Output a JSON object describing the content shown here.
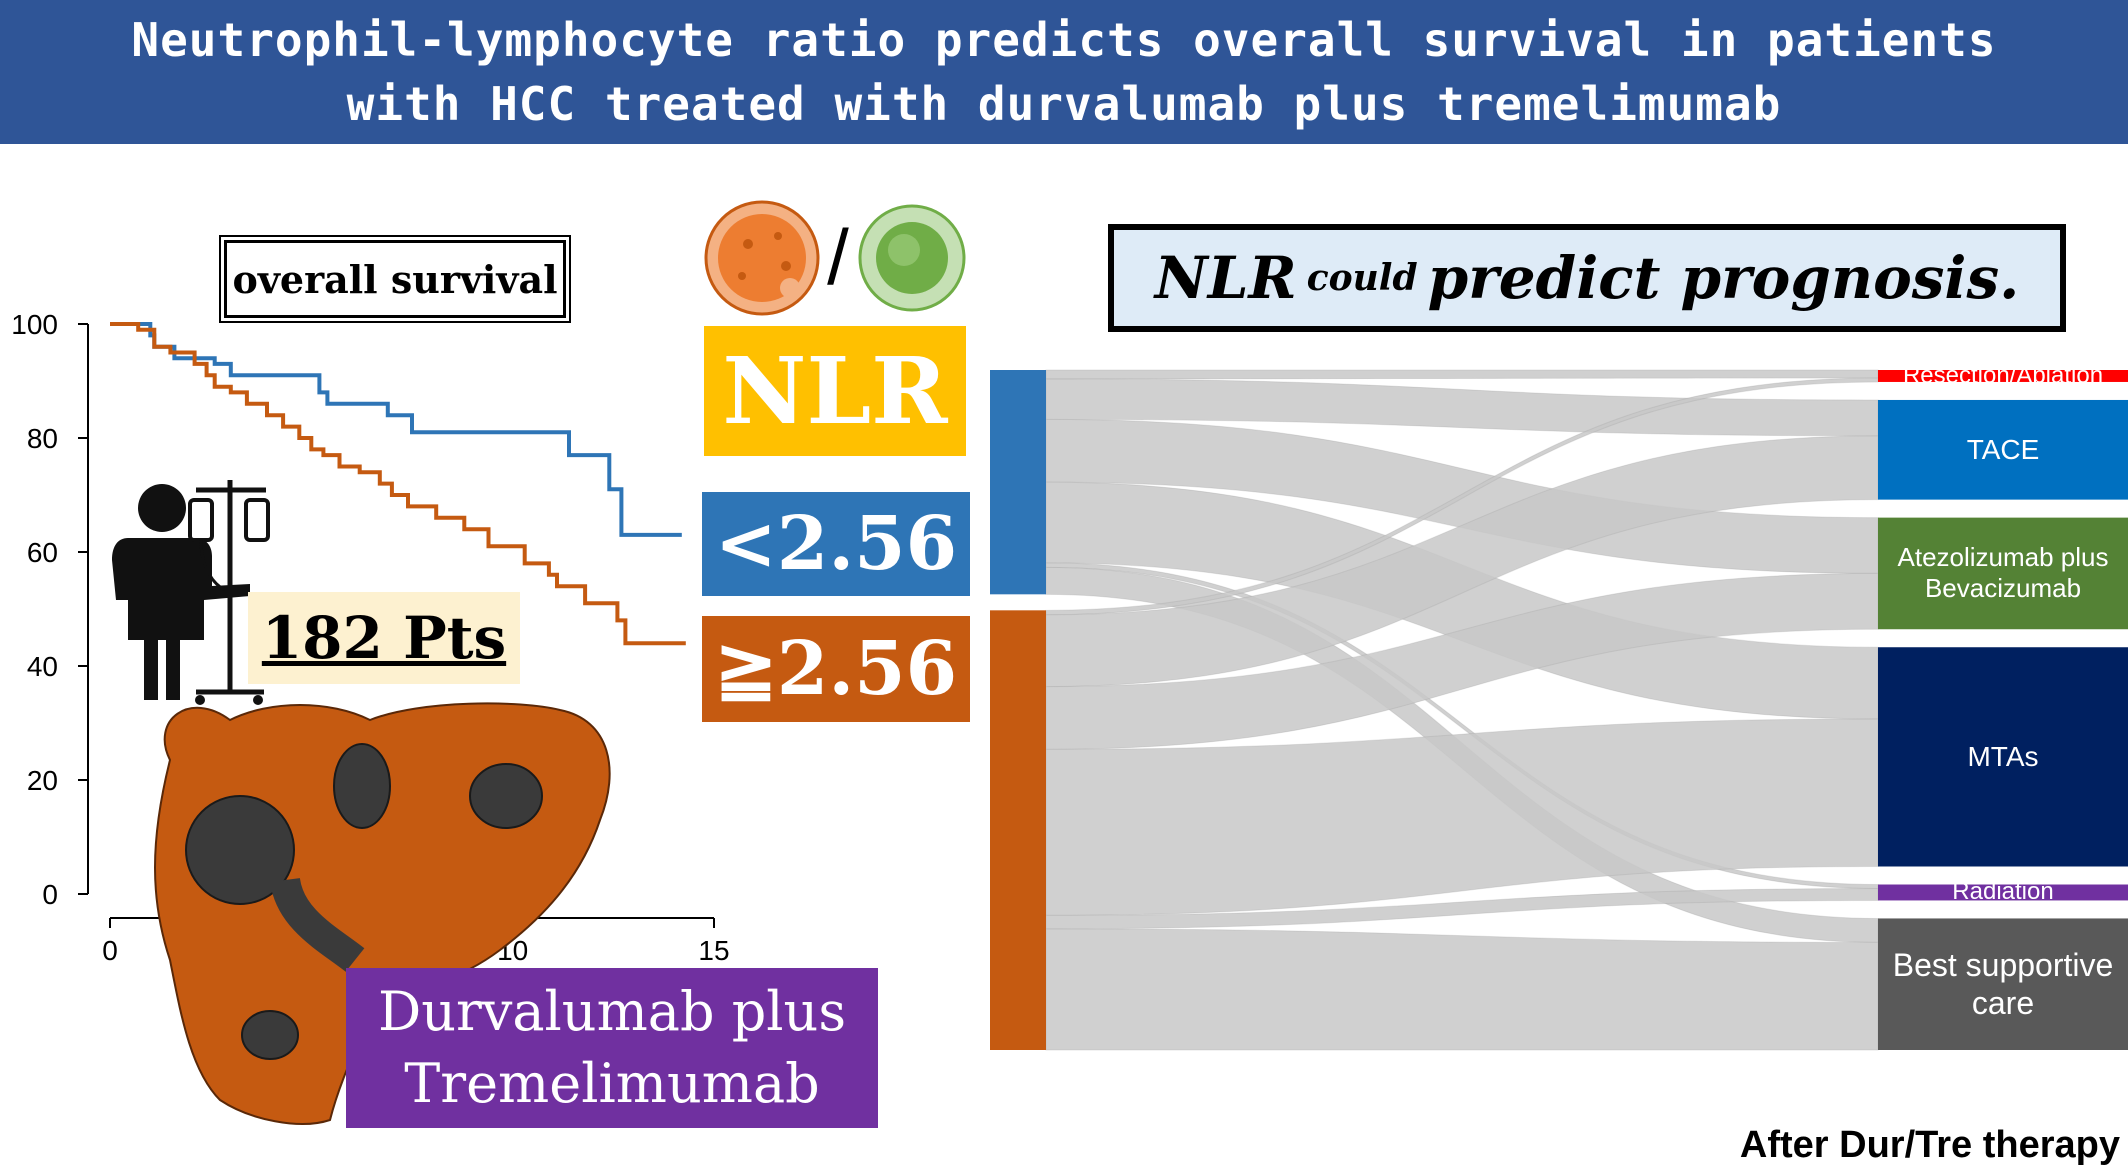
{
  "header": {
    "title_line1": "Neutrophil-lymphocyte ratio predicts overall survival in patients",
    "title_line2": "with HCC treated with durvalumab plus tremelimumab"
  },
  "km_box_label": "overall survival",
  "patients_label": "182 Pts",
  "nlr_label": "NLR",
  "ratio_slash": "/",
  "low_group_label": "<2.56",
  "high_group_label": "≧2.56",
  "prediction_label": {
    "part1": "NLR",
    "part2": "could",
    "part3": "predict prognosis."
  },
  "drug_label": {
    "line1": "Durvalumab plus",
    "line2": "Tremelimumab"
  },
  "after_label": "After Dur/Tre therapy",
  "colors": {
    "banner": "#2f5597",
    "low_nlr": "#2e75b6",
    "high_nlr": "#c55a11",
    "nlr_box": "#ffc000",
    "drug_box": "#7030a0",
    "flow": "#c8c8c8"
  },
  "chart_data": [
    {
      "type": "line",
      "title": "overall survival",
      "xlabel": "",
      "ylabel": "",
      "xlim": [
        0,
        15
      ],
      "ylim": [
        0,
        100
      ],
      "xticks": [
        0,
        5,
        10,
        15
      ],
      "xtick_labels": [
        "0",
        "",
        "10",
        "15"
      ],
      "yticks": [
        0,
        20,
        40,
        60,
        80,
        100
      ],
      "series": [
        {
          "color": "#2e75b6",
          "points": [
            [
              0,
              100
            ],
            [
              1.0,
              100
            ],
            [
              1.0,
              98
            ],
            [
              1.1,
              98
            ],
            [
              1.1,
              96
            ],
            [
              1.6,
              96
            ],
            [
              1.6,
              94
            ],
            [
              2.6,
              94
            ],
            [
              2.6,
              93
            ],
            [
              3.0,
              93
            ],
            [
              3.0,
              91
            ],
            [
              5.2,
              91
            ],
            [
              5.2,
              88
            ],
            [
              5.4,
              88
            ],
            [
              5.4,
              86
            ],
            [
              6.9,
              86
            ],
            [
              6.9,
              84
            ],
            [
              7.5,
              84
            ],
            [
              7.5,
              81
            ],
            [
              11.4,
              81
            ],
            [
              11.4,
              77
            ],
            [
              12.4,
              77
            ],
            [
              12.4,
              71
            ],
            [
              12.7,
              71
            ],
            [
              12.7,
              63
            ],
            [
              14.2,
              63
            ]
          ]
        },
        {
          "color": "#c55a11",
          "points": [
            [
              0,
              100
            ],
            [
              0.7,
              100
            ],
            [
              0.7,
              99
            ],
            [
              1.1,
              99
            ],
            [
              1.1,
              96
            ],
            [
              1.5,
              96
            ],
            [
              1.5,
              95
            ],
            [
              2.1,
              95
            ],
            [
              2.1,
              93
            ],
            [
              2.4,
              93
            ],
            [
              2.4,
              91
            ],
            [
              2.6,
              91
            ],
            [
              2.6,
              89
            ],
            [
              3.0,
              89
            ],
            [
              3.0,
              88
            ],
            [
              3.4,
              88
            ],
            [
              3.4,
              86
            ],
            [
              3.9,
              86
            ],
            [
              3.9,
              84
            ],
            [
              4.3,
              84
            ],
            [
              4.3,
              82
            ],
            [
              4.7,
              82
            ],
            [
              4.7,
              80
            ],
            [
              5.0,
              80
            ],
            [
              5.0,
              78
            ],
            [
              5.3,
              78
            ],
            [
              5.3,
              77
            ],
            [
              5.7,
              77
            ],
            [
              5.7,
              75
            ],
            [
              6.2,
              75
            ],
            [
              6.2,
              74
            ],
            [
              6.7,
              74
            ],
            [
              6.7,
              72
            ],
            [
              7.0,
              72
            ],
            [
              7.0,
              70
            ],
            [
              7.4,
              70
            ],
            [
              7.4,
              68
            ],
            [
              8.1,
              68
            ],
            [
              8.1,
              66
            ],
            [
              8.8,
              66
            ],
            [
              8.8,
              64
            ],
            [
              9.4,
              64
            ],
            [
              9.4,
              61
            ],
            [
              10.3,
              61
            ],
            [
              10.3,
              58
            ],
            [
              10.9,
              58
            ],
            [
              10.9,
              56
            ],
            [
              11.1,
              56
            ],
            [
              11.1,
              54
            ],
            [
              11.8,
              54
            ],
            [
              11.8,
              51
            ],
            [
              12.6,
              51
            ],
            [
              12.6,
              48
            ],
            [
              12.8,
              48
            ],
            [
              12.8,
              44
            ],
            [
              14.3,
              44
            ]
          ]
        }
      ]
    },
    {
      "type": "sankey",
      "sources": [
        {
          "name": "<2.56",
          "color": "#2e75b6"
        },
        {
          "name": "≧2.56",
          "color": "#c55a11"
        }
      ],
      "targets": [
        {
          "name": "Resection/Ablation",
          "color": "#ff0000"
        },
        {
          "name": "TACE",
          "color": "#0070c0"
        },
        {
          "name": "Atezolizumab plus Bevacizumab",
          "color": "#548235"
        },
        {
          "name": "MTAs",
          "color": "#002060"
        },
        {
          "name": "Radiation",
          "color": "#7030a0"
        },
        {
          "name": "Best supportive care",
          "color": "#595959"
        }
      ],
      "flows": [
        {
          "from": "<2.56",
          "to": "Resection/Ablation",
          "value": 2
        },
        {
          "from": "<2.56",
          "to": "TACE",
          "value": 9
        },
        {
          "from": "<2.56",
          "to": "Atezolizumab plus Bevacizumab",
          "value": 14
        },
        {
          "from": "<2.56",
          "to": "MTAs",
          "value": 18
        },
        {
          "from": "<2.56",
          "to": "Radiation",
          "value": 1
        },
        {
          "from": "<2.56",
          "to": "Best supportive care",
          "value": 6
        },
        {
          "from": "≧2.56",
          "to": "Resection/Ablation",
          "value": 1
        },
        {
          "from": "≧2.56",
          "to": "TACE",
          "value": 16
        },
        {
          "from": "≧2.56",
          "to": "Atezolizumab plus Bevacizumab",
          "value": 14
        },
        {
          "from": "≧2.56",
          "to": "MTAs",
          "value": 37
        },
        {
          "from": "≧2.56",
          "to": "Radiation",
          "value": 3
        },
        {
          "from": "≧2.56",
          "to": "Best supportive care",
          "value": 27
        }
      ]
    }
  ]
}
